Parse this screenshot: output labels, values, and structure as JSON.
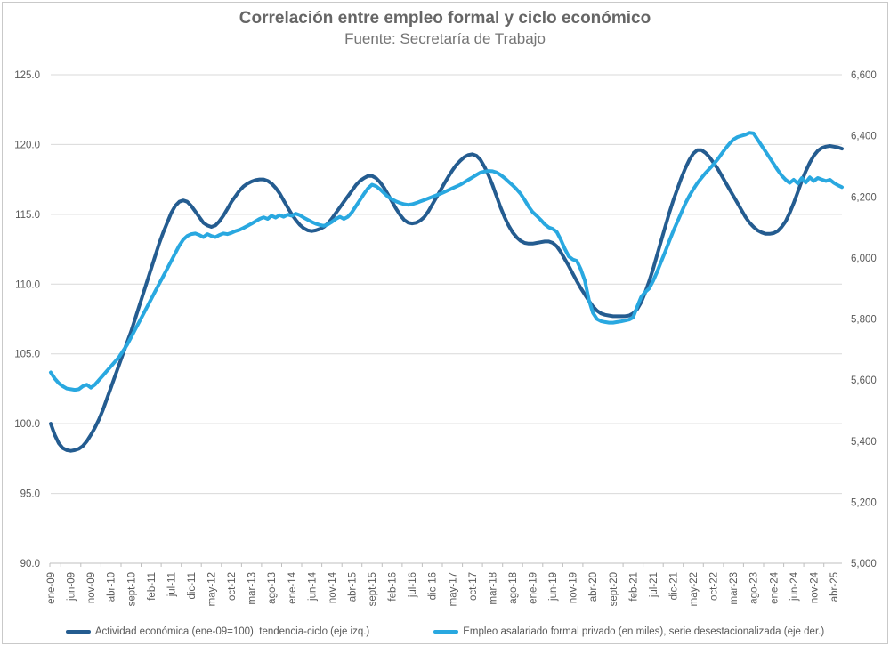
{
  "chart_data": {
    "type": "line",
    "title": "Correlación entre empleo formal y ciclo económico",
    "subtitle": "Fuente: Secretaría de Trabajo",
    "grid": "horizontal",
    "legend_position": "bottom",
    "grid_color": "#d9d9d9",
    "axis_color": "#bfbfbf",
    "label_color": "#595959",
    "x_start": "ene-09",
    "x_end": "jun-25",
    "x_tick_labels": [
      "ene-09",
      "jun-09",
      "nov-09",
      "abr-10",
      "sept-10",
      "feb-11",
      "jul-11",
      "dic-11",
      "may-12",
      "oct-12",
      "mar-13",
      "ago-13",
      "ene-14",
      "jun-14",
      "nov-14",
      "abr-15",
      "sept-15",
      "feb-16",
      "jul-16",
      "dic-16",
      "may-17",
      "oct-17",
      "mar-18",
      "ago-18",
      "ene-19",
      "jun-19",
      "nov-19",
      "abr-20",
      "sept-20",
      "feb-21",
      "jul-21",
      "dic-21",
      "may-22",
      "oct-22",
      "mar-23",
      "ago-23",
      "ene-24",
      "jun-24",
      "nov-24",
      "abr-25"
    ],
    "left_axis": {
      "min": 90,
      "max": 125,
      "ticks": [
        "125.0",
        "120.0",
        "115.0",
        "110.0",
        "105.0",
        "100.0",
        "95.0",
        "90.0"
      ],
      "tick_values": [
        125,
        120,
        115,
        110,
        105,
        100,
        95,
        90
      ]
    },
    "right_axis": {
      "min": 5000,
      "max": 6600,
      "ticks": [
        "6,600",
        "6,400",
        "6,200",
        "6,000",
        "5,800",
        "5,600",
        "5,400",
        "5,200",
        "5,000"
      ],
      "tick_values": [
        6600,
        6400,
        6200,
        6000,
        5800,
        5600,
        5400,
        5200,
        5000
      ]
    },
    "series": [
      {
        "id": "actividad",
        "name": "Actividad económica (ene-09=100), tendencia-ciclo (eje izq.)",
        "axis": "left",
        "color": "#245c90",
        "values": [
          100.0,
          99.2,
          98.6,
          98.25,
          98.1,
          98.05,
          98.1,
          98.2,
          98.4,
          98.75,
          99.2,
          99.7,
          100.3,
          101.0,
          101.8,
          102.6,
          103.4,
          104.2,
          105.0,
          105.8,
          106.6,
          107.5,
          108.4,
          109.3,
          110.2,
          111.1,
          112.0,
          112.9,
          113.7,
          114.4,
          115.1,
          115.6,
          115.9,
          116.0,
          115.9,
          115.6,
          115.2,
          114.8,
          114.4,
          114.2,
          114.1,
          114.2,
          114.5,
          114.9,
          115.4,
          115.9,
          116.3,
          116.7,
          117.0,
          117.2,
          117.35,
          117.45,
          117.5,
          117.5,
          117.4,
          117.2,
          116.9,
          116.5,
          116.0,
          115.5,
          115.0,
          114.6,
          114.25,
          114.0,
          113.85,
          113.8,
          113.85,
          113.95,
          114.1,
          114.35,
          114.7,
          115.1,
          115.5,
          115.9,
          116.3,
          116.7,
          117.1,
          117.4,
          117.6,
          117.75,
          117.75,
          117.6,
          117.3,
          116.9,
          116.4,
          115.9,
          115.4,
          114.95,
          114.6,
          114.4,
          114.35,
          114.4,
          114.55,
          114.8,
          115.2,
          115.7,
          116.2,
          116.7,
          117.2,
          117.7,
          118.15,
          118.55,
          118.85,
          119.1,
          119.25,
          119.3,
          119.2,
          118.9,
          118.4,
          117.8,
          117.1,
          116.3,
          115.5,
          114.8,
          114.2,
          113.7,
          113.35,
          113.1,
          112.95,
          112.9,
          112.9,
          112.95,
          113.0,
          113.05,
          113.05,
          112.95,
          112.7,
          112.3,
          111.8,
          111.3,
          110.75,
          110.2,
          109.7,
          109.25,
          108.8,
          108.4,
          108.1,
          107.9,
          107.8,
          107.75,
          107.7,
          107.7,
          107.7,
          107.7,
          107.75,
          107.9,
          108.2,
          108.7,
          109.4,
          110.2,
          111.1,
          112.1,
          113.1,
          114.1,
          115.1,
          116.0,
          116.8,
          117.6,
          118.3,
          118.9,
          119.35,
          119.6,
          119.6,
          119.4,
          119.1,
          118.7,
          118.3,
          117.8,
          117.3,
          116.8,
          116.3,
          115.8,
          115.3,
          114.8,
          114.4,
          114.1,
          113.85,
          113.7,
          113.6,
          113.6,
          113.65,
          113.8,
          114.1,
          114.5,
          115.1,
          115.8,
          116.6,
          117.4,
          118.1,
          118.7,
          119.2,
          119.55,
          119.75,
          119.85,
          119.9,
          119.85,
          119.8,
          119.7
        ]
      },
      {
        "id": "empleo",
        "name": "Empleo asalariado formal privado (en miles), serie desestacionalizada (eje der.)",
        "axis": "right",
        "color": "#29a8e0",
        "values": [
          5625,
          5605,
          5590,
          5580,
          5572,
          5570,
          5568,
          5570,
          5580,
          5585,
          5575,
          5585,
          5600,
          5615,
          5630,
          5645,
          5660,
          5675,
          5695,
          5715,
          5740,
          5765,
          5790,
          5815,
          5840,
          5865,
          5890,
          5915,
          5940,
          5965,
          5990,
          6015,
          6040,
          6060,
          6072,
          6078,
          6080,
          6075,
          6068,
          6078,
          6072,
          6068,
          6075,
          6080,
          6078,
          6082,
          6088,
          6092,
          6098,
          6105,
          6112,
          6120,
          6128,
          6133,
          6128,
          6138,
          6132,
          6140,
          6135,
          6142,
          6138,
          6145,
          6140,
          6132,
          6125,
          6118,
          6112,
          6108,
          6105,
          6110,
          6118,
          6128,
          6135,
          6128,
          6135,
          6150,
          6170,
          6190,
          6210,
          6228,
          6240,
          6235,
          6225,
          6212,
          6200,
          6192,
          6185,
          6180,
          6176,
          6174,
          6176,
          6180,
          6185,
          6190,
          6195,
          6200,
          6205,
          6210,
          6216,
          6222,
          6228,
          6234,
          6240,
          6248,
          6256,
          6264,
          6272,
          6280,
          6283,
          6285,
          6284,
          6280,
          6272,
          6262,
          6250,
          6238,
          6225,
          6210,
          6190,
          6168,
          6150,
          6138,
          6125,
          6110,
          6100,
          6095,
          6085,
          6060,
          6030,
          6005,
          5995,
          5990,
          5962,
          5925,
          5862,
          5820,
          5800,
          5793,
          5790,
          5788,
          5788,
          5790,
          5792,
          5795,
          5798,
          5805,
          5840,
          5872,
          5888,
          5900,
          5925,
          5955,
          5988,
          6020,
          6055,
          6088,
          6118,
          6148,
          6178,
          6203,
          6225,
          6245,
          6262,
          6278,
          6292,
          6306,
          6322,
          6340,
          6358,
          6374,
          6388,
          6396,
          6400,
          6404,
          6410,
          6408,
          6388,
          6368,
          6348,
          6328,
          6308,
          6288,
          6270,
          6256,
          6246,
          6256,
          6244,
          6262,
          6247,
          6264,
          6252,
          6262,
          6257,
          6252,
          6256,
          6246,
          6238,
          6232
        ]
      }
    ]
  }
}
